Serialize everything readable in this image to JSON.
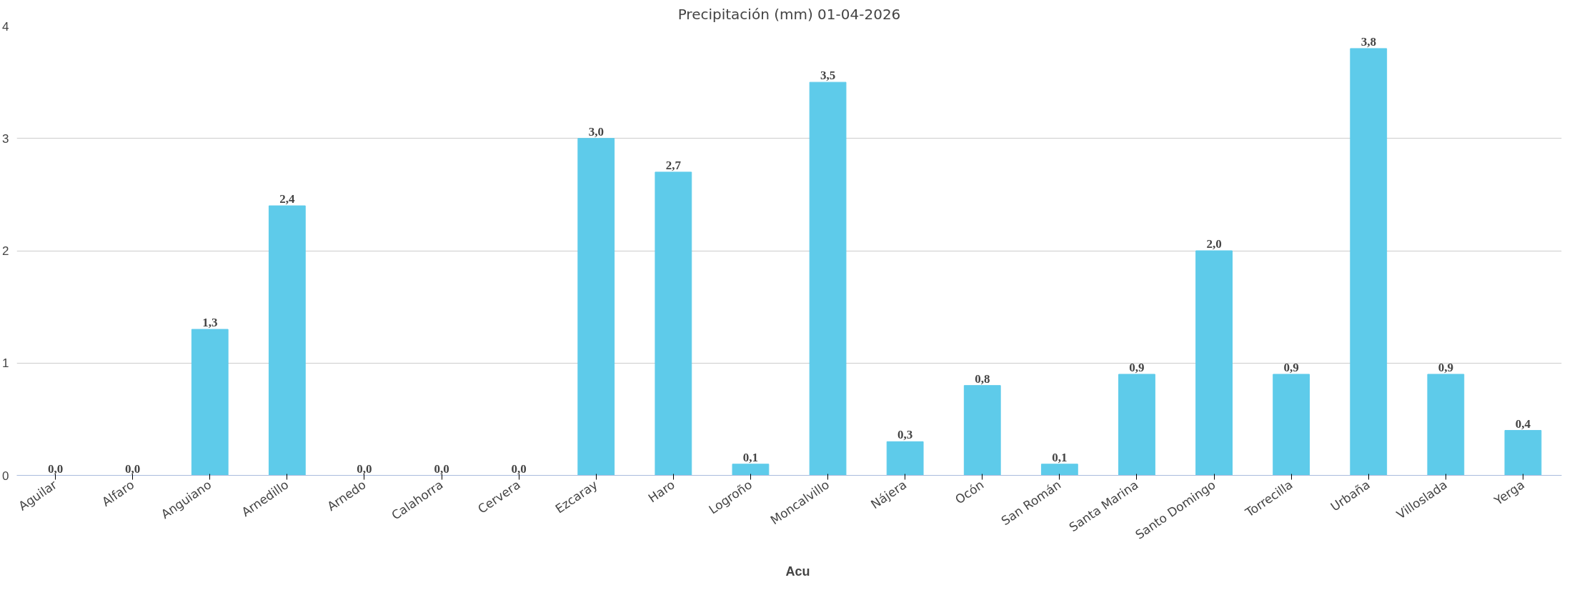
{
  "chart_data": {
    "type": "bar",
    "title": "Precipitación (mm) 01-04-2026",
    "categories": [
      "Aguilar",
      "Alfaro",
      "Anguiano",
      "Arnedillo",
      "Arnedo",
      "Calahorra",
      "Cervera",
      "Ezcaray",
      "Haro",
      "Logroño",
      "Moncalvillo",
      "Nájera",
      "Ocón",
      "San Román",
      "Santa Marina",
      "Santo Domingo",
      "Torrecilla",
      "Urbaña",
      "Villoslada",
      "Yerga"
    ],
    "series": [
      {
        "name": "Acu",
        "color": "#5ecbea",
        "values": [
          0.0,
          0.0,
          1.3,
          2.4,
          0.0,
          0.0,
          0.0,
          3.0,
          2.7,
          0.1,
          3.5,
          0.3,
          0.8,
          0.1,
          0.9,
          2.0,
          0.9,
          3.8,
          0.9,
          0.4
        ]
      }
    ],
    "value_labels": [
      "0,0",
      "0,0",
      "1,3",
      "2,4",
      "0,0",
      "0,0",
      "0,0",
      "3,0",
      "2,7",
      "0,1",
      "3,5",
      "0,3",
      "0,8",
      "0,1",
      "0,9",
      "2,0",
      "0,9",
      "3,8",
      "0,9",
      "0,4"
    ],
    "ylim": [
      0,
      4
    ],
    "yticks": [
      0,
      1,
      2,
      3,
      4
    ],
    "grid": "y",
    "legend": "bottom"
  }
}
